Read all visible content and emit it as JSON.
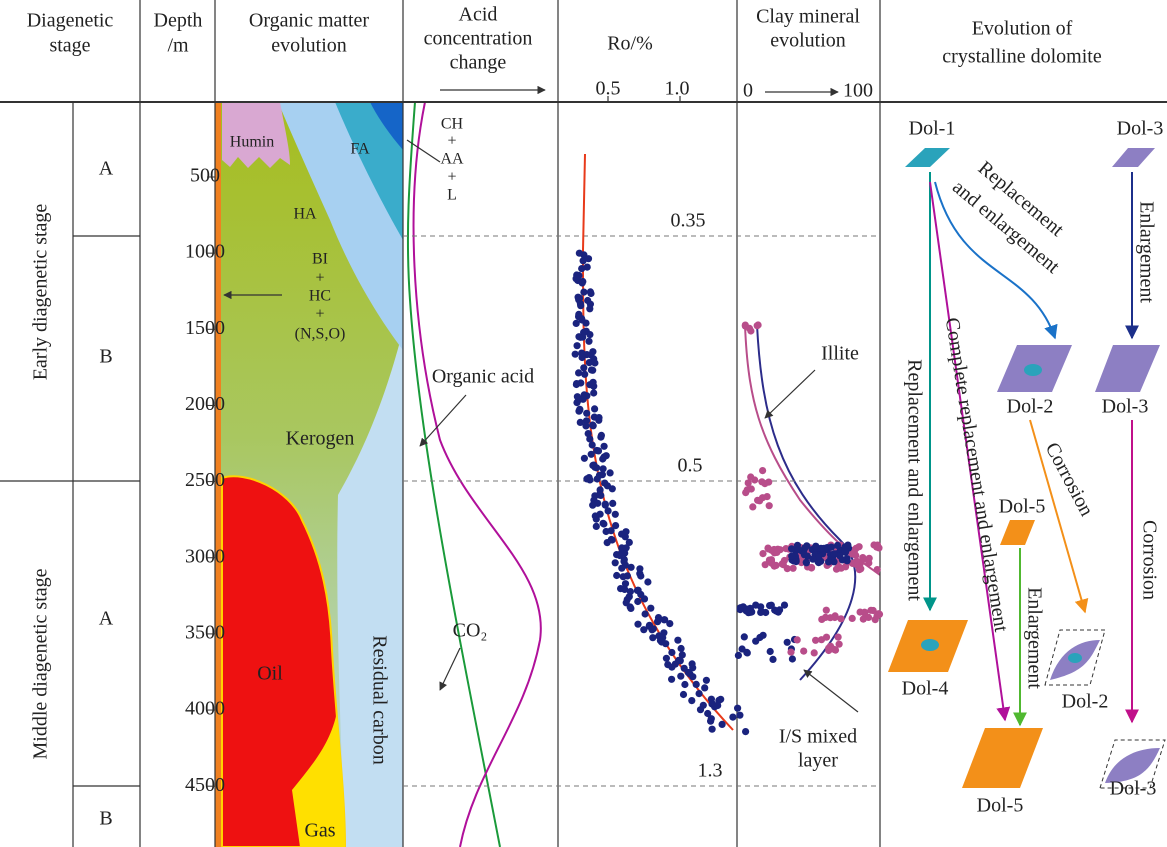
{
  "header": {
    "stage": [
      "Diagenetic",
      "stage"
    ],
    "depth": [
      "Depth",
      "/m"
    ],
    "organic": [
      "Organic matter",
      "evolution"
    ],
    "acid": [
      "Acid",
      "concentration",
      "change"
    ],
    "ro": "Ro/%",
    "ro_ticks": [
      "0.5",
      "1.0"
    ],
    "clay": [
      "Clay mineral",
      "evolution"
    ],
    "clay_axis": [
      "0",
      "100"
    ],
    "dolomite": [
      "Evolution of",
      "crystalline dolomite"
    ]
  },
  "stages": {
    "early": "Early diagenetic stage",
    "middle": "Middle diagenetic stage",
    "substages": [
      "A",
      "B",
      "A",
      "B"
    ]
  },
  "depth_ticks": [
    500,
    1000,
    1500,
    2000,
    2500,
    3000,
    3500,
    4000,
    4500
  ],
  "organic": {
    "humin": "Humin",
    "fa": "FA",
    "ha": "HA",
    "products": [
      "BI",
      "+",
      "HC",
      "+",
      "(N,S,O)"
    ],
    "kerogen": "Kerogen",
    "oil": "Oil",
    "gas": "Gas",
    "residual": "Residual carbon"
  },
  "acid": {
    "products": [
      "CH",
      "+",
      "AA",
      "+",
      "L"
    ],
    "organic_acid": "Organic acid",
    "co2": "CO₂"
  },
  "ro": {
    "labels": [
      "0.35",
      "0.5",
      "1.3"
    ]
  },
  "clay": {
    "illite": "Illite",
    "is_mixed": [
      "I/S mixed",
      "layer"
    ]
  },
  "dolomite": {
    "labels": [
      "Dol-1",
      "Dol-3",
      "Dol-2",
      "Dol-3",
      "Dol-5",
      "Dol-4",
      "Dol-2",
      "Dol-5",
      "Dol-3"
    ],
    "processes": [
      "Replacement",
      "and enlargement",
      "Replacement and enlargement",
      "Complete replacement and enlargement",
      "Enlargement",
      "Corrosion",
      "Enlargement",
      "Corrosion"
    ]
  }
}
